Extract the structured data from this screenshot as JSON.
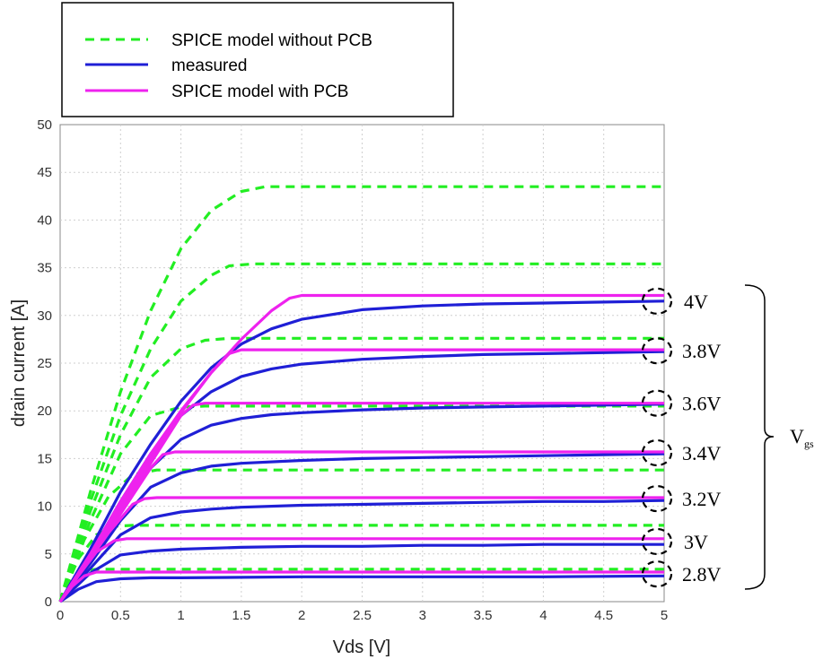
{
  "chart_data": {
    "type": "line",
    "xlabel": "Vds [V]",
    "ylabel": "drain current [A]",
    "xlim": [
      0,
      5
    ],
    "ylim": [
      0,
      50
    ],
    "xticks": [
      "0",
      "0.5",
      "1",
      "1.5",
      "2",
      "2.5",
      "3",
      "3.5",
      "4",
      "4.5",
      "5"
    ],
    "yticks": [
      "0",
      "5",
      "10",
      "15",
      "20",
      "25",
      "30",
      "35",
      "40",
      "45",
      "50"
    ],
    "grid": true,
    "legend": {
      "placement": "top-left",
      "entries": [
        {
          "label": "SPICE model without PCB",
          "color": "#22ee22",
          "style": "dashed"
        },
        {
          "label": "measured",
          "color": "#1f1fd6",
          "style": "solid"
        },
        {
          "label": "SPICE model with PCB",
          "color": "#ee22ee",
          "style": "solid"
        }
      ]
    },
    "vgs_labels": [
      "4V",
      "3.8V",
      "3.6V",
      "3.4V",
      "3.2V",
      "3V",
      "2.8V"
    ],
    "vgs_group_label": "V",
    "vgs_group_sub": "gs",
    "series_groups": [
      {
        "key": "spice_no_pcb",
        "color": "#22ee22",
        "style": "dashed",
        "curves": [
          {
            "vgs": "4V",
            "x": [
              0,
              0.25,
              0.5,
              0.75,
              1.0,
              1.25,
              1.5,
              1.7,
              2.0,
              3.0,
              4.0,
              5.0
            ],
            "y": [
              0,
              11.5,
              22,
              30.5,
              37,
              41,
              43,
              43.5,
              43.5,
              43.5,
              43.5,
              43.5
            ]
          },
          {
            "vgs": "3.8V",
            "x": [
              0,
              0.25,
              0.5,
              0.75,
              1.0,
              1.25,
              1.4,
              1.6,
              2.0,
              3.0,
              4.0,
              5.0
            ],
            "y": [
              0,
              10.5,
              19.5,
              26.5,
              31.5,
              34.2,
              35.2,
              35.4,
              35.4,
              35.4,
              35.4,
              35.4
            ]
          },
          {
            "vgs": "3.6V",
            "x": [
              0,
              0.25,
              0.5,
              0.75,
              1.0,
              1.2,
              1.4,
              2.0,
              3.0,
              4.0,
              5.0
            ],
            "y": [
              0,
              9.5,
              17.5,
              23.5,
              26.5,
              27.4,
              27.6,
              27.6,
              27.6,
              27.6,
              27.6
            ]
          },
          {
            "vgs": "3.4V",
            "x": [
              0,
              0.25,
              0.5,
              0.75,
              1.0,
              1.2,
              2.0,
              3.0,
              4.0,
              5.0
            ],
            "y": [
              0,
              8.5,
              15.5,
              19.5,
              20.4,
              20.5,
              20.5,
              20.5,
              20.5,
              20.5
            ]
          },
          {
            "vgs": "3.2V",
            "x": [
              0,
              0.2,
              0.4,
              0.6,
              0.8,
              1.0,
              2.0,
              3.0,
              4.0,
              5.0
            ],
            "y": [
              0,
              6.5,
              11.0,
              13.3,
              13.8,
              13.8,
              13.8,
              13.8,
              13.8,
              13.8
            ]
          },
          {
            "vgs": "3V",
            "x": [
              0,
              0.15,
              0.3,
              0.45,
              0.6,
              1.0,
              2.0,
              3.0,
              4.0,
              5.0
            ],
            "y": [
              0,
              4.5,
              7.0,
              7.9,
              8.0,
              8.0,
              8.0,
              8.0,
              8.0,
              8.0
            ]
          },
          {
            "vgs": "2.8V",
            "x": [
              0,
              0.1,
              0.2,
              0.3,
              0.4,
              1.0,
              2.0,
              3.0,
              4.0,
              5.0
            ],
            "y": [
              0,
              2.2,
              3.2,
              3.4,
              3.4,
              3.4,
              3.4,
              3.4,
              3.4,
              3.4
            ]
          }
        ]
      },
      {
        "key": "measured",
        "color": "#1f1fd6",
        "style": "solid",
        "curves": [
          {
            "vgs": "4V",
            "x": [
              0,
              0.25,
              0.5,
              0.75,
              1.0,
              1.25,
              1.5,
              1.75,
              2.0,
              2.5,
              3.0,
              3.5,
              4.0,
              4.5,
              5.0
            ],
            "y": [
              0,
              5.5,
              11.5,
              16.5,
              21,
              24.5,
              27,
              28.6,
              29.6,
              30.6,
              31,
              31.2,
              31.3,
              31.4,
              31.5
            ]
          },
          {
            "vgs": "3.8V",
            "x": [
              0,
              0.25,
              0.5,
              0.75,
              1.0,
              1.25,
              1.5,
              1.75,
              2.0,
              2.5,
              3.0,
              3.5,
              4.0,
              4.5,
              5.0
            ],
            "y": [
              0,
              5.0,
              10.5,
              15.5,
              19.5,
              22,
              23.6,
              24.4,
              24.9,
              25.4,
              25.7,
              25.9,
              26.0,
              26.1,
              26.2
            ]
          },
          {
            "vgs": "3.6V",
            "x": [
              0,
              0.25,
              0.5,
              0.75,
              1.0,
              1.25,
              1.5,
              1.75,
              2.0,
              2.5,
              3.0,
              3.5,
              4.0,
              4.5,
              5.0
            ],
            "y": [
              0,
              4.5,
              9.5,
              14,
              17,
              18.5,
              19.2,
              19.6,
              19.8,
              20.1,
              20.3,
              20.4,
              20.5,
              20.6,
              20.7
            ]
          },
          {
            "vgs": "3.4V",
            "x": [
              0,
              0.25,
              0.5,
              0.75,
              1.0,
              1.25,
              1.5,
              2.0,
              2.5,
              3.0,
              3.5,
              4.0,
              4.5,
              5.0
            ],
            "y": [
              0,
              4.0,
              8.5,
              12,
              13.5,
              14.2,
              14.5,
              14.8,
              15.0,
              15.1,
              15.2,
              15.3,
              15.4,
              15.5
            ]
          },
          {
            "vgs": "3.2V",
            "x": [
              0,
              0.25,
              0.5,
              0.75,
              1.0,
              1.25,
              1.5,
              2.0,
              2.5,
              3.0,
              3.5,
              4.0,
              4.5,
              5.0
            ],
            "y": [
              0,
              3.5,
              7,
              8.8,
              9.4,
              9.7,
              9.9,
              10.1,
              10.2,
              10.3,
              10.4,
              10.5,
              10.5,
              10.6
            ]
          },
          {
            "vgs": "3V",
            "x": [
              0,
              0.25,
              0.5,
              0.75,
              1.0,
              1.5,
              2.0,
              2.5,
              3.0,
              3.5,
              4.0,
              4.5,
              5.0
            ],
            "y": [
              0,
              3,
              4.9,
              5.3,
              5.5,
              5.7,
              5.8,
              5.8,
              5.9,
              5.9,
              6.0,
              6.0,
              6.0
            ]
          },
          {
            "vgs": "2.8V",
            "x": [
              0,
              0.15,
              0.3,
              0.5,
              0.75,
              1.0,
              2.0,
              3.0,
              4.0,
              5.0
            ],
            "y": [
              0,
              1.3,
              2.1,
              2.4,
              2.5,
              2.5,
              2.6,
              2.6,
              2.6,
              2.7
            ]
          }
        ]
      },
      {
        "key": "spice_pcb",
        "color": "#ee22ee",
        "style": "solid",
        "curves": [
          {
            "vgs": "4V",
            "x": [
              0,
              0.25,
              0.5,
              0.75,
              1.0,
              1.25,
              1.5,
              1.75,
              1.9,
              2.0,
              3.0,
              4.0,
              5.0
            ],
            "y": [
              0,
              5.0,
              10.5,
              15.5,
              20,
              24,
              27.5,
              30.5,
              31.8,
              32.1,
              32.1,
              32.1,
              32.1
            ]
          },
          {
            "vgs": "3.8V",
            "x": [
              0,
              0.25,
              0.5,
              0.75,
              1.0,
              1.25,
              1.4,
              1.5,
              2.0,
              3.0,
              4.0,
              5.0
            ],
            "y": [
              0,
              4.8,
              10,
              15,
              19.8,
              24,
              26,
              26.4,
              26.4,
              26.4,
              26.4,
              26.4
            ]
          },
          {
            "vgs": "3.6V",
            "x": [
              0,
              0.25,
              0.5,
              0.75,
              1.0,
              1.1,
              1.2,
              2.0,
              3.0,
              4.0,
              5.0
            ],
            "y": [
              0,
              4.6,
              9.5,
              14.5,
              19.5,
              20.6,
              20.8,
              20.8,
              20.8,
              20.8,
              20.8
            ]
          },
          {
            "vgs": "3.4V",
            "x": [
              0,
              0.25,
              0.5,
              0.75,
              0.85,
              0.95,
              2.0,
              3.0,
              4.0,
              5.0
            ],
            "y": [
              0,
              4.5,
              9.2,
              14,
              15.4,
              15.7,
              15.7,
              15.7,
              15.7,
              15.7
            ]
          },
          {
            "vgs": "3.2V",
            "x": [
              0,
              0.2,
              0.4,
              0.6,
              0.7,
              0.8,
              2.0,
              3.0,
              4.0,
              5.0
            ],
            "y": [
              0,
              3.6,
              7.2,
              10.2,
              10.8,
              10.9,
              10.9,
              10.9,
              10.9,
              10.9
            ]
          },
          {
            "vgs": "3V",
            "x": [
              0,
              0.15,
              0.3,
              0.45,
              0.55,
              0.65,
              2.0,
              3.0,
              4.0,
              5.0
            ],
            "y": [
              0,
              2.7,
              5.2,
              6.4,
              6.6,
              6.6,
              6.6,
              6.6,
              6.6,
              6.6
            ]
          },
          {
            "vgs": "2.8V",
            "x": [
              0,
              0.1,
              0.2,
              0.3,
              0.4,
              1.0,
              2.0,
              3.0,
              4.0,
              5.0
            ],
            "y": [
              0,
              1.6,
              2.7,
              3.1,
              3.1,
              3.1,
              3.1,
              3.1,
              3.1,
              3.1
            ]
          }
        ]
      }
    ],
    "vgs_label_levels": [
      31.5,
      26.3,
      20.8,
      15.6,
      10.8,
      6.3,
      2.9
    ]
  }
}
